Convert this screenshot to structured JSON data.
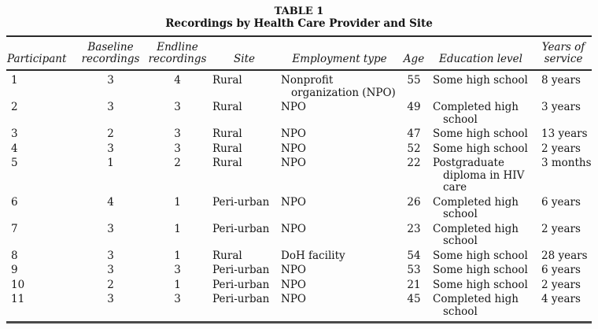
{
  "page": {
    "background": "#fdfdfd",
    "text_color": "#161616",
    "rule_color": "#2a2a2a"
  },
  "table": {
    "caption": {
      "label": "TABLE 1",
      "title": "Recordings by Health Care Provider and Site"
    },
    "columns": [
      {
        "key": "participant",
        "label_lines": [
          "Participant"
        ]
      },
      {
        "key": "baseline-recordings",
        "label_lines": [
          "Baseline",
          "recordings"
        ]
      },
      {
        "key": "endline-recordings",
        "label_lines": [
          "Endline",
          "recordings"
        ]
      },
      {
        "key": "site",
        "label_lines": [
          "Site"
        ]
      },
      {
        "key": "employment-type",
        "label_lines": [
          "Employment type"
        ]
      },
      {
        "key": "age",
        "label_lines": [
          "Age"
        ]
      },
      {
        "key": "education-level",
        "label_lines": [
          "Education level"
        ]
      },
      {
        "key": "years-of-service",
        "label_lines": [
          "Years of",
          "service"
        ]
      }
    ],
    "rows": [
      [
        "1",
        "3",
        "4",
        "Rural",
        "Nonprofit\norganization (NPO)",
        "55",
        "Some high school",
        "8 years"
      ],
      [
        "2",
        "3",
        "3",
        "Rural",
        "NPO",
        "49",
        "Completed high\nschool",
        "3 years"
      ],
      [
        "3",
        "2",
        "3",
        "Rural",
        "NPO",
        "47",
        "Some high school",
        "13 years"
      ],
      [
        "4",
        "3",
        "3",
        "Rural",
        "NPO",
        "52",
        "Some high school",
        "2 years"
      ],
      [
        "5",
        "1",
        "2",
        "Rural",
        "NPO",
        "22",
        "Postgraduate\ndiploma in HIV\ncare",
        "3 months"
      ],
      [
        "6",
        "4",
        "1",
        "Peri-urban",
        "NPO",
        "26",
        "Completed high\nschool",
        "6 years"
      ],
      [
        "7",
        "3",
        "1",
        "Peri-urban",
        "NPO",
        "23",
        "Completed high\nschool",
        "2 years"
      ],
      [
        "8",
        "3",
        "1",
        "Rural",
        "DoH facility",
        "54",
        "Some high school",
        "28 years"
      ],
      [
        "9",
        "3",
        "3",
        "Peri-urban",
        "NPO",
        "53",
        "Some high school",
        "6 years"
      ],
      [
        "10",
        "2",
        "1",
        "Peri-urban",
        "NPO",
        "21",
        "Some high school",
        "2 years"
      ],
      [
        "11",
        "3",
        "3",
        "Peri-urban",
        "NPO",
        "45",
        "Completed high\nschool",
        "4 years"
      ]
    ]
  }
}
